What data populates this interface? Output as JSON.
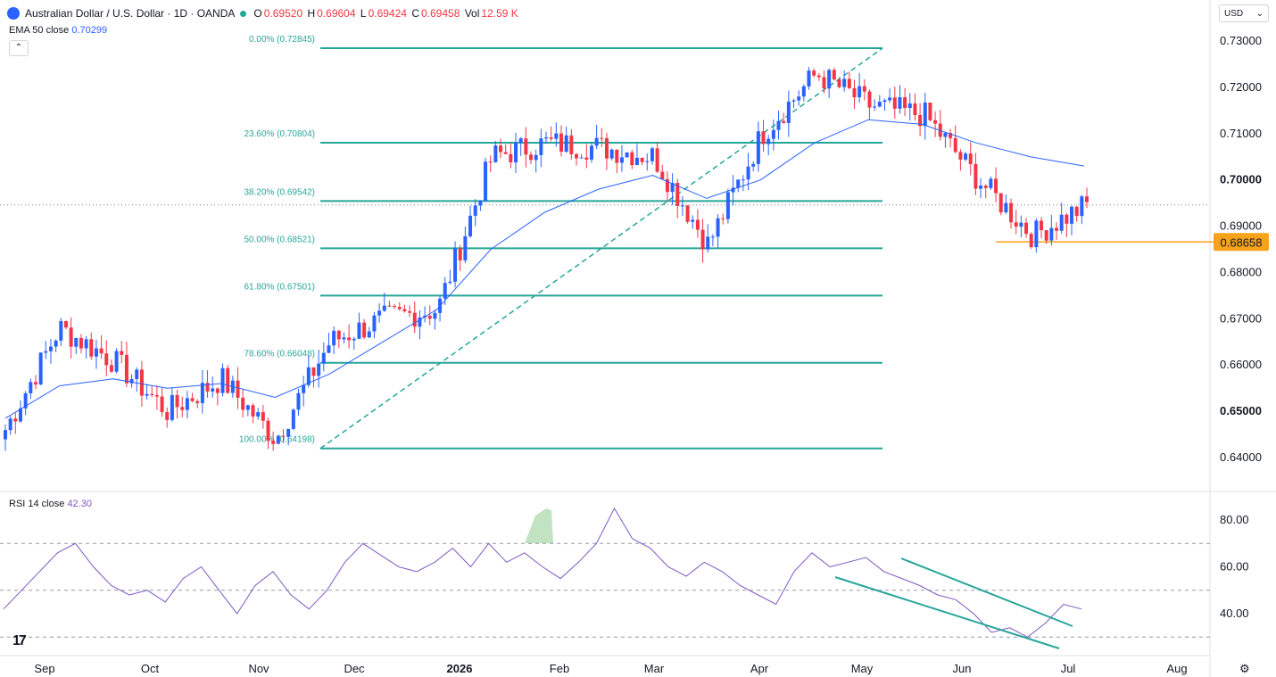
{
  "header": {
    "symbol_title": "Australian Dollar / U.S. Dollar · 1D · OANDA",
    "ohlc": [
      {
        "key": "O",
        "value": "0.69520"
      },
      {
        "key": "H",
        "value": "0.69604"
      },
      {
        "key": "L",
        "value": "0.69424"
      },
      {
        "key": "C",
        "value": "0.69458"
      },
      {
        "key": "Vol",
        "value": "12.59 K"
      }
    ]
  },
  "indicators": {
    "ema_label": "EMA 50 close",
    "ema_value": "0.70299",
    "rsi_label": "RSI 14 close",
    "rsi_value": "42.30"
  },
  "currency_button": {
    "label": "USD",
    "chevron": "chevron-down-icon"
  },
  "colors": {
    "up": "#2962ff",
    "down": "#f23645",
    "fib": "#26a69a",
    "ema": "#2962ff",
    "rsi": "#7e57c2",
    "support": "#f7a21b"
  },
  "chart_data": [
    {
      "type": "candlestick",
      "title": "Australian Dollar / U.S. Dollar · 1D · OANDA",
      "x_ticks": [
        "Sep",
        "Oct",
        "Nov",
        "Dec",
        "2026",
        "Feb",
        "Mar",
        "Apr",
        "May",
        "Jun",
        "Jul",
        "Aug"
      ],
      "y_ticks": [
        "0.73000",
        "0.72000",
        "0.71000",
        "0.70000",
        "0.69000",
        "0.68000",
        "0.67000",
        "0.66000",
        "0.65000",
        "0.64000"
      ],
      "ylim": [
        0.636,
        0.7325
      ],
      "last_price": 0.69458,
      "support_level": {
        "value": 0.68658,
        "label": "0.68658"
      },
      "fib_levels": [
        {
          "label": "0.00% (0.72845)",
          "value": 0.72845
        },
        {
          "label": "23.60% (0.70804)",
          "value": 0.70804
        },
        {
          "label": "38.20% (0.69542)",
          "value": 0.69542
        },
        {
          "label": "50.00% (0.68521)",
          "value": 0.68521
        },
        {
          "label": "61.80% (0.67501)",
          "value": 0.67501
        },
        {
          "label": "78.60% (0.66048)",
          "value": 0.66048
        },
        {
          "label": "100.00% (0.64198)",
          "value": 0.64198
        }
      ],
      "series_ohlc_anchors": [
        {
          "date": "Sep",
          "close": 0.646
        },
        {
          "date": "Sep-mid",
          "close": 0.668
        },
        {
          "date": "Oct",
          "close": 0.661
        },
        {
          "date": "Oct-end",
          "close": 0.65
        },
        {
          "date": "Nov-mid",
          "close": 0.657
        },
        {
          "date": "Nov-end",
          "close": 0.644
        },
        {
          "date": "Dec-mid",
          "close": 0.665
        },
        {
          "date": "2026",
          "close": 0.67
        },
        {
          "date": "Jan-mid",
          "close": 0.672
        },
        {
          "date": "Jan-end",
          "close": 0.705
        },
        {
          "date": "Feb-mid",
          "close": 0.708
        },
        {
          "date": "Mar",
          "close": 0.707
        },
        {
          "date": "Mar-mid",
          "close": 0.705
        },
        {
          "date": "Apr",
          "close": 0.686
        },
        {
          "date": "Apr-mid",
          "close": 0.71
        },
        {
          "date": "May",
          "close": 0.723
        },
        {
          "date": "May-mid",
          "close": 0.716
        },
        {
          "date": "Jun",
          "close": 0.714
        },
        {
          "date": "Jun-mid",
          "close": 0.7
        },
        {
          "date": "Jun-end",
          "close": 0.688
        },
        {
          "date": "Jul",
          "close": 0.6946
        }
      ],
      "ema50_anchors": [
        0.6485,
        0.6555,
        0.657,
        0.655,
        0.656,
        0.653,
        0.658,
        0.665,
        0.672,
        0.685,
        0.693,
        0.698,
        0.701,
        0.696,
        0.7,
        0.708,
        0.713,
        0.712,
        0.708,
        0.705,
        0.703
      ]
    },
    {
      "type": "line",
      "title": "RSI 14 close",
      "y_ticks": [
        "80.00",
        "60.00",
        "40.00"
      ],
      "ylim": [
        25,
        88
      ],
      "bands": [
        70,
        50,
        30
      ],
      "values": [
        42,
        50,
        58,
        66,
        70,
        60,
        52,
        48,
        50,
        45,
        55,
        60,
        50,
        40,
        52,
        58,
        48,
        42,
        50,
        62,
        70,
        65,
        60,
        58,
        62,
        68,
        60,
        70,
        62,
        66,
        60,
        55,
        62,
        70,
        85,
        72,
        68,
        60,
        56,
        62,
        58,
        52,
        48,
        44,
        58,
        66,
        60,
        62,
        64,
        58,
        55,
        52,
        48,
        46,
        40,
        32,
        34,
        30,
        36,
        44,
        42
      ]
    }
  ]
}
